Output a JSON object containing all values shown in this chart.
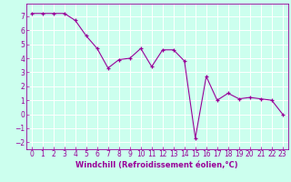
{
  "x": [
    0,
    1,
    2,
    3,
    4,
    5,
    6,
    7,
    8,
    9,
    10,
    11,
    12,
    13,
    14,
    15,
    16,
    17,
    18,
    19,
    20,
    21,
    22,
    23
  ],
  "y": [
    7.2,
    7.2,
    7.2,
    7.2,
    6.7,
    5.6,
    4.7,
    3.3,
    3.9,
    4.0,
    4.7,
    3.4,
    4.6,
    4.6,
    3.8,
    -1.7,
    2.7,
    1.0,
    1.5,
    1.1,
    1.2,
    1.1,
    1.0,
    0.0
  ],
  "line_color": "#990099",
  "marker": "+",
  "marker_size": 3,
  "background_color": "#ccffee",
  "grid_color": "#ffffff",
  "xlabel": "Windchill (Refroidissement éolien,°C)",
  "ylim": [
    -2.5,
    7.9
  ],
  "xlim": [
    -0.5,
    23.5
  ],
  "yticks": [
    -2,
    -1,
    0,
    1,
    2,
    3,
    4,
    5,
    6,
    7
  ],
  "xticks": [
    0,
    1,
    2,
    3,
    4,
    5,
    6,
    7,
    8,
    9,
    10,
    11,
    12,
    13,
    14,
    15,
    16,
    17,
    18,
    19,
    20,
    21,
    22,
    23
  ],
  "tick_color": "#990099",
  "label_color": "#990099",
  "xlabel_fontsize": 6.0,
  "tick_fontsize": 5.5
}
